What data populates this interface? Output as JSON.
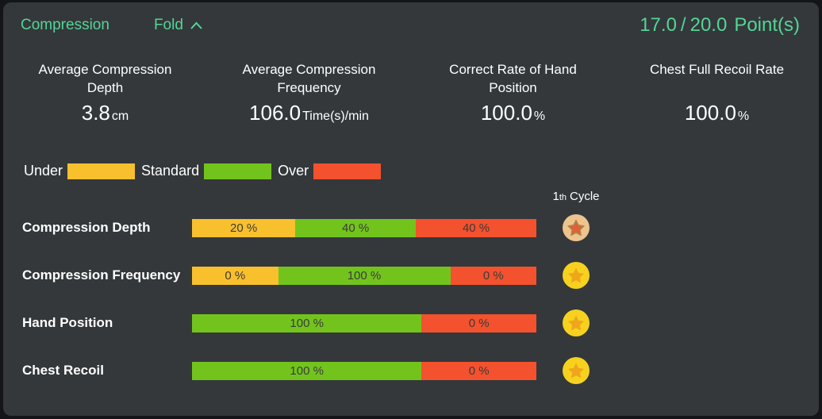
{
  "panel": {
    "title": "Compression",
    "fold_label": "Fold",
    "score": "17.0",
    "score_divider": "/",
    "score_total": "20.0",
    "score_unit": "Point(s)"
  },
  "stats": [
    {
      "label": "Average Compression Depth",
      "value": "3.8",
      "unit": "cm"
    },
    {
      "label": "Average Compression Frequency",
      "value": "106.0",
      "unit": "Time(s)/min"
    },
    {
      "label": "Correct Rate of Hand Position",
      "value": "100.0",
      "unit": "%"
    },
    {
      "label": "Chest Full Recoil Rate",
      "value": "100.0",
      "unit": "%"
    }
  ],
  "legend": [
    {
      "label": "Under",
      "status": "under"
    },
    {
      "label": "Standard",
      "status": "standard"
    },
    {
      "label": "Over",
      "status": "over"
    }
  ],
  "cycle_header": {
    "number": "1",
    "ordinal_suffix": "th",
    "word": "Cycle"
  },
  "percent_suffix": " %",
  "rows": [
    {
      "label": "Compression Depth",
      "medal": "bronze",
      "segments": [
        {
          "status": "under",
          "percent": 20
        },
        {
          "status": "standard",
          "percent": 40
        },
        {
          "status": "over",
          "percent": 40
        }
      ]
    },
    {
      "label": "Compression Frequency",
      "medal": "gold",
      "segments": [
        {
          "status": "under",
          "percent": 0
        },
        {
          "status": "standard",
          "percent": 100
        },
        {
          "status": "over",
          "percent": 0
        }
      ]
    },
    {
      "label": "Hand Position",
      "medal": "gold",
      "segments": [
        {
          "status": "standard",
          "percent": 100
        },
        {
          "status": "over",
          "percent": 0
        }
      ]
    },
    {
      "label": "Chest Recoil",
      "medal": "gold",
      "segments": [
        {
          "status": "standard",
          "percent": 100
        },
        {
          "status": "over",
          "percent": 0
        }
      ]
    }
  ],
  "colors": {
    "accent": "#53d596",
    "under": "#f9c02d",
    "standard": "#72c41d",
    "over": "#f4512e",
    "panel_bg": "#34383b",
    "bar_text": "#3b3b3b",
    "medal_gold_coin": "#f6d21f",
    "medal_gold_star": "#efa61b",
    "medal_bronze_coin": "#edc48e",
    "medal_bronze_star": "#e0603a",
    "medal_bronze_star_stroke": "#a58c48"
  }
}
